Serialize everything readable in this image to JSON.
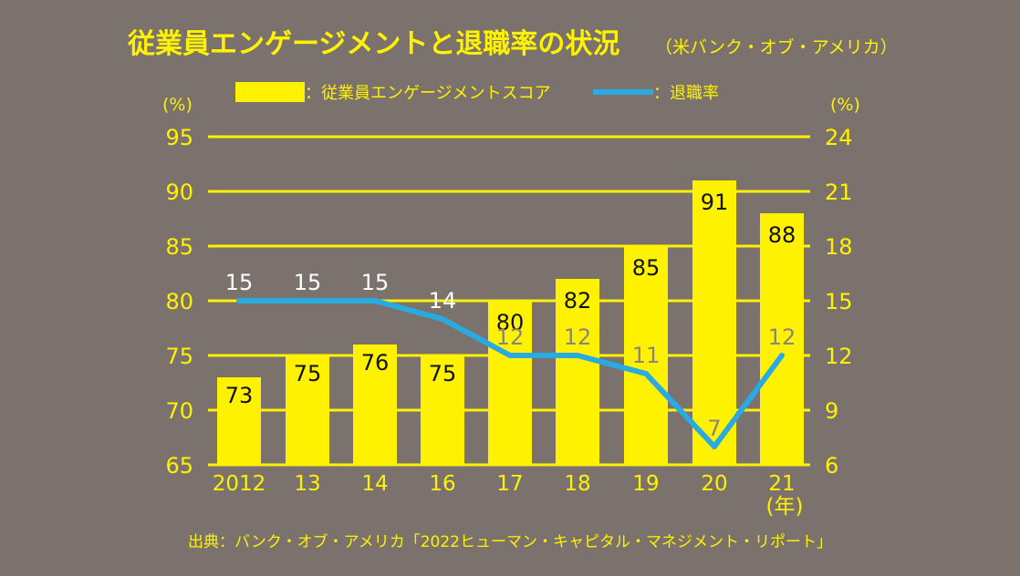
{
  "title": "従業員エンゲージメントと退職率の状況",
  "subtitle": "（米バンク・オブ・アメリカ）",
  "source": "出典：バンク・オブ・アメリカ「2022ヒューマン・キャピタル・マネジメント・リポート」",
  "colors": {
    "background": "#7b726d",
    "bar": "#fff200",
    "line": "#29abe2",
    "text": "#fff200"
  },
  "chart_data": {
    "type": "bar",
    "categories": [
      "2012",
      "13",
      "14",
      "16",
      "17",
      "18",
      "19",
      "20",
      "21"
    ],
    "x_unit": "(年)",
    "left_axis": {
      "unit": "(%)",
      "range": [
        65,
        95
      ],
      "ticks": [
        "65",
        "70",
        "75",
        "80",
        "85",
        "90",
        "95"
      ]
    },
    "right_axis": {
      "unit": "(%)",
      "range": [
        6,
        24
      ],
      "ticks": [
        "6",
        "9",
        "12",
        "15",
        "18",
        "21",
        "24"
      ]
    },
    "grid": true,
    "legend_placement": "top",
    "series": [
      {
        "name": "：従業員エンゲージメントスコア",
        "type": "bar",
        "axis": "left",
        "values": [
          73,
          75,
          76,
          75,
          80,
          82,
          85,
          91,
          88
        ]
      },
      {
        "name": "：退職率",
        "type": "line",
        "axis": "right",
        "values": [
          15,
          15,
          15,
          14,
          12,
          12,
          11,
          7,
          12
        ]
      }
    ]
  }
}
